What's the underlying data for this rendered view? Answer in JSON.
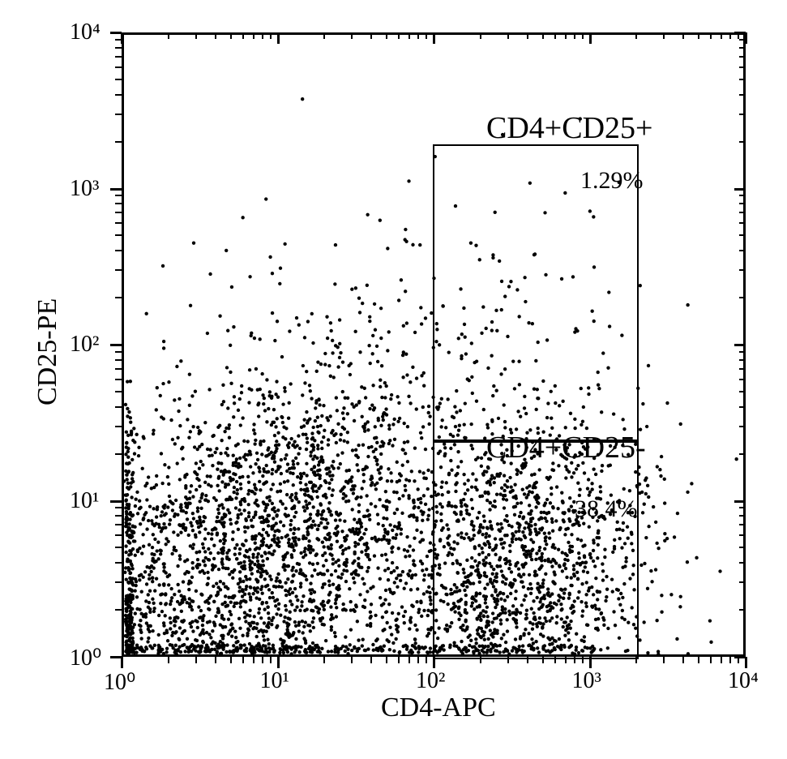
{
  "chart": {
    "type": "scatter",
    "x_label": "CD4-APC",
    "y_label": "CD25-PE",
    "x_scale": "log",
    "y_scale": "log",
    "xlim": [
      1,
      10000
    ],
    "ylim": [
      1,
      10000
    ],
    "x_ticks": [
      1,
      10,
      100,
      1000,
      10000
    ],
    "y_ticks": [
      1,
      10,
      100,
      1000,
      10000
    ],
    "x_tick_labels": [
      "10⁰",
      "10¹",
      "10²",
      "10³",
      "10⁴"
    ],
    "y_tick_labels": [
      "10⁰",
      "10¹",
      "10²",
      "10³",
      "10⁴"
    ],
    "border_color": "#000000",
    "border_width": 3,
    "background_color": "#ffffff",
    "point_color": "#000000",
    "point_size": 2.2,
    "label_fontsize": 34,
    "tick_fontsize": 28,
    "gates": [
      {
        "name": "CD4+CD25+",
        "x_range": [
          95,
          2000
        ],
        "y_range": [
          25,
          2000
        ],
        "percentage": "1.29%",
        "border_width": 2
      },
      {
        "name": "CD4+CD25-",
        "x_range": [
          95,
          2000
        ],
        "y_range": [
          1,
          25
        ],
        "percentage": "38.4%",
        "border_width": 2
      }
    ],
    "clusters": [
      {
        "cx_log": 0.65,
        "cy_log": 0.65,
        "n": 1400,
        "sx": 0.55,
        "sy": 0.45
      },
      {
        "cx_log": 1.25,
        "cy_log": 1.05,
        "n": 800,
        "sx": 0.42,
        "sy": 0.55
      },
      {
        "cx_log": 2.55,
        "cy_log": 0.7,
        "n": 1300,
        "sx": 0.45,
        "sy": 0.42
      },
      {
        "cx_log": 2.5,
        "cy_log": 2.0,
        "n": 120,
        "sx": 0.55,
        "sy": 0.55
      },
      {
        "cx_log": 1.4,
        "cy_log": 1.6,
        "n": 140,
        "sx": 0.7,
        "sy": 0.6
      },
      {
        "cx_log": 0.5,
        "cy_log": 0.15,
        "n": 300,
        "sx": 0.6,
        "sy": 0.18
      },
      {
        "cx_log": 2.4,
        "cy_log": 0.15,
        "n": 220,
        "sx": 0.45,
        "sy": 0.18
      }
    ]
  }
}
